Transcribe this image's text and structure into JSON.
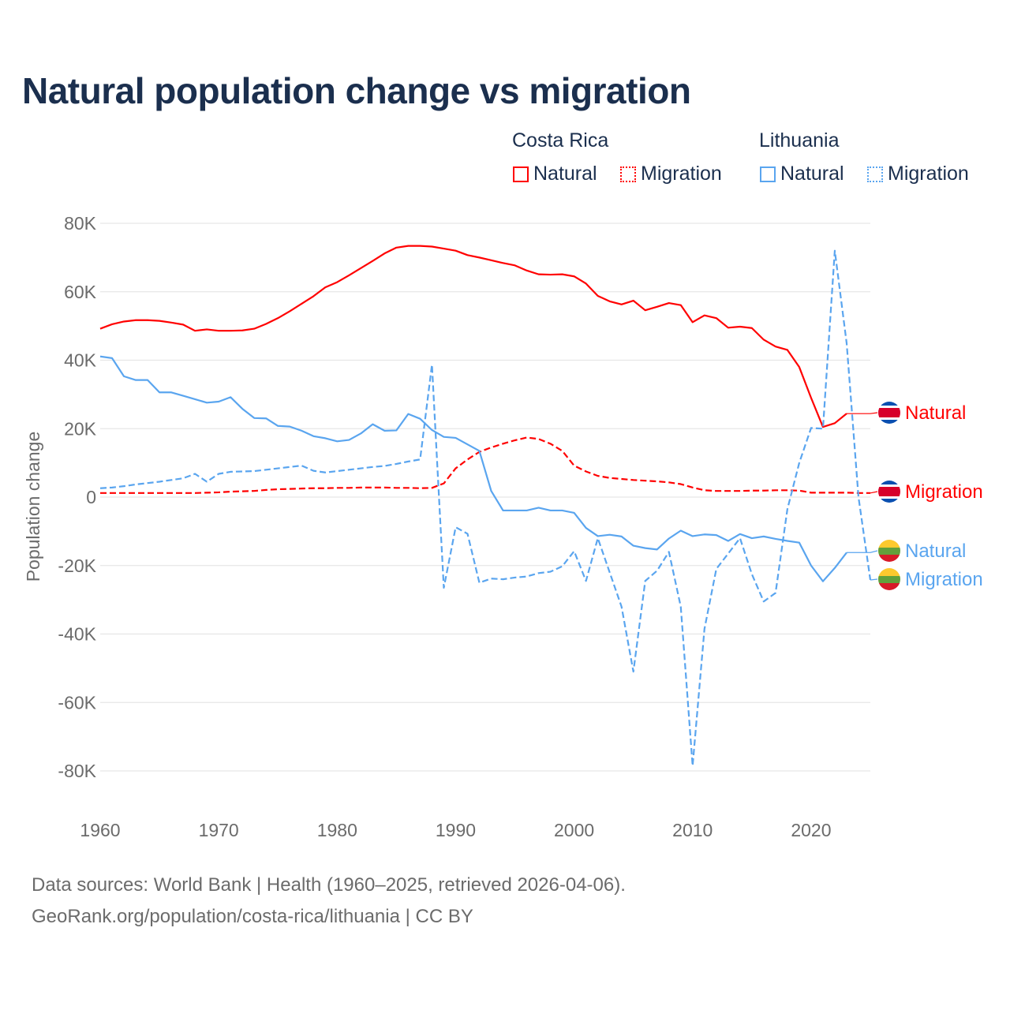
{
  "chart_data": {
    "type": "line",
    "title": "Natural population change vs migration",
    "xlabel": "",
    "ylabel": "Population change",
    "xlim": [
      1960,
      2025
    ],
    "ylim": [
      -90000,
      80000
    ],
    "x_ticks": [
      1960,
      1970,
      1980,
      1990,
      2000,
      2010,
      2020
    ],
    "x_tick_labels": [
      "1960",
      "1970",
      "1980",
      "1990",
      "2000",
      "2010",
      "2020"
    ],
    "y_ticks": [
      80000,
      60000,
      40000,
      20000,
      0,
      -20000,
      -40000,
      -60000,
      -80000
    ],
    "y_tick_labels": [
      "80K",
      "60K",
      "40K",
      "20K",
      "0",
      "-20K",
      "-40K",
      "-60K",
      "-80K"
    ],
    "grid": true,
    "legend_placement": "top-right",
    "legend_groups": [
      "Costa Rica",
      "Lithuania"
    ],
    "series": [
      {
        "name": "Natural",
        "country": "Costa Rica",
        "color": "#ff0000",
        "dash": "solid",
        "end_label": "Natural",
        "flag": "costa-rica",
        "x_start": 1960,
        "values": [
          49200,
          50500,
          51300,
          51700,
          51700,
          51500,
          51000,
          50400,
          48600,
          49000,
          48600,
          48600,
          48700,
          49200,
          50600,
          52300,
          54300,
          56500,
          58700,
          61300,
          62800,
          64800,
          66900,
          69000,
          71200,
          72900,
          73400,
          73400,
          73200,
          72600,
          72000,
          70700,
          70000,
          69200,
          68400,
          67700,
          66200,
          65100,
          65000,
          65100,
          64500,
          62400,
          58800,
          57200,
          56300,
          57400,
          54600,
          55600,
          56700,
          56100,
          51100,
          53100,
          52300,
          49500,
          49800,
          49400,
          46000,
          44000,
          43000,
          38000,
          29000,
          20500,
          21600,
          24400
        ]
      },
      {
        "name": "Migration",
        "country": "Costa Rica",
        "color": "#ff0000",
        "dash": "dashed",
        "end_label": "Migration",
        "flag": "costa-rica",
        "x_start": 1960,
        "values": [
          1200,
          1200,
          1200,
          1200,
          1200,
          1200,
          1200,
          1200,
          1200,
          1300,
          1400,
          1600,
          1700,
          1800,
          2100,
          2300,
          2400,
          2500,
          2600,
          2600,
          2700,
          2700,
          2800,
          2800,
          2800,
          2700,
          2700,
          2600,
          2700,
          4000,
          8400,
          11000,
          13200,
          14500,
          15600,
          16600,
          17400,
          17000,
          15600,
          13500,
          9200,
          7500,
          6200,
          5600,
          5300,
          5000,
          4800,
          4600,
          4300,
          3800,
          2800,
          2000,
          1800,
          1800,
          1800,
          1900,
          1900,
          2000,
          2000,
          1900,
          1300,
          1300,
          1300,
          1300,
          1200,
          1200
        ]
      },
      {
        "name": "Natural",
        "country": "Lithuania",
        "color": "#5aa5ef",
        "dash": "solid",
        "end_label": "Natural",
        "flag": "lithuania",
        "x_start": 1960,
        "values": [
          41100,
          40600,
          35300,
          34200,
          34200,
          30600,
          30600,
          29600,
          28600,
          27600,
          27900,
          29200,
          25800,
          23100,
          23000,
          20800,
          20600,
          19400,
          17800,
          17200,
          16300,
          16700,
          18600,
          21300,
          19400,
          19500,
          24300,
          22900,
          19600,
          17600,
          17300,
          15400,
          13500,
          1800,
          -3900,
          -3900,
          -3900,
          -3100,
          -3900,
          -3900,
          -4600,
          -9000,
          -11400,
          -11000,
          -11500,
          -14200,
          -14900,
          -15300,
          -12100,
          -9800,
          -11400,
          -10900,
          -11100,
          -12800,
          -10800,
          -12000,
          -11500,
          -12200,
          -12800,
          -13300,
          -20000,
          -24600,
          -20700,
          -16200
        ]
      },
      {
        "name": "Migration",
        "country": "Lithuania",
        "color": "#5aa5ef",
        "dash": "dashed",
        "end_label": "Migration",
        "flag": "lithuania",
        "x_start": 1960,
        "values": [
          2600,
          2800,
          3200,
          3700,
          4100,
          4500,
          5000,
          5500,
          6800,
          4500,
          6800,
          7400,
          7500,
          7600,
          8000,
          8400,
          8800,
          9200,
          7700,
          7200,
          7600,
          8000,
          8400,
          8800,
          9100,
          9700,
          10400,
          11000,
          38700,
          -26500,
          -8800,
          -10700,
          -25000,
          -23800,
          -24000,
          -23500,
          -23200,
          -22200,
          -21800,
          -20200,
          -15800,
          -24500,
          -12000,
          -22000,
          -32000,
          -51000,
          -24500,
          -21500,
          -16000,
          -32000,
          -78500,
          -38500,
          -21000,
          -16500,
          -12000,
          -22500,
          -30500,
          -28000,
          -3500,
          10000,
          20200,
          20000,
          72000,
          45000,
          0,
          -24200
        ]
      }
    ],
    "legend": {
      "groups": [
        {
          "name": "Costa Rica",
          "items": [
            "Natural",
            "Migration"
          ]
        },
        {
          "name": "Lithuania",
          "items": [
            "Natural",
            "Migration"
          ]
        }
      ]
    }
  },
  "footer": {
    "line1": "Data sources: World Bank | Health (1960–2025, retrieved 2026-04-06).",
    "line2": "GeoRank.org/population/costa-rica/lithuania | CC BY"
  }
}
